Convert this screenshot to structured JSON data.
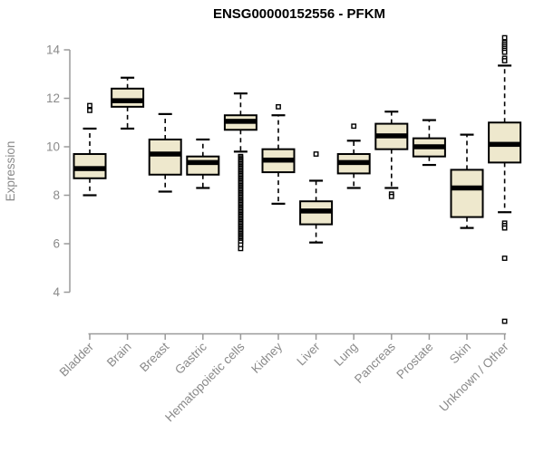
{
  "header": {
    "title": "ENSG00000152556 - PFKM"
  },
  "chart_data": {
    "type": "boxplot",
    "title": "ENSG00000152556 - PFKM",
    "xlabel": "",
    "ylabel": "Expression",
    "grid": false,
    "legend": false,
    "y_axis": {
      "min": 4,
      "max": 14,
      "ticks": [
        4,
        6,
        8,
        10,
        12,
        14
      ]
    },
    "categories": [
      "Bladder",
      "Brain",
      "Breast",
      "Gastric",
      "Hematopoietic cells",
      "Kidney",
      "Liver",
      "Lung",
      "Pancreas",
      "Prostate",
      "Skin",
      "Unknown / Other"
    ],
    "series": [
      {
        "name": "Bladder",
        "whisker_low": 8.0,
        "q1": 8.7,
        "median": 9.1,
        "q3": 9.7,
        "whisker_high": 10.75,
        "outliers": [
          11.5,
          11.7
        ]
      },
      {
        "name": "Brain",
        "whisker_low": 10.75,
        "q1": 11.65,
        "median": 11.9,
        "q3": 12.4,
        "whisker_high": 12.85,
        "outliers": []
      },
      {
        "name": "Breast",
        "whisker_low": 8.15,
        "q1": 8.85,
        "median": 9.7,
        "q3": 10.3,
        "whisker_high": 11.35,
        "outliers": []
      },
      {
        "name": "Gastric",
        "whisker_low": 8.3,
        "q1": 8.85,
        "median": 9.35,
        "q3": 9.6,
        "whisker_high": 10.3,
        "outliers": []
      },
      {
        "name": "Hematopoietic cells",
        "whisker_low": 9.8,
        "q1": 10.7,
        "median": 11.05,
        "q3": 11.3,
        "whisker_high": 12.2,
        "outliers": [
          9.6,
          9.54,
          9.48,
          9.42,
          9.36,
          9.3,
          9.24,
          9.18,
          9.12,
          9.06,
          9.0,
          8.94,
          8.88,
          8.82,
          8.76,
          8.7,
          8.64,
          8.58,
          8.52,
          8.46,
          8.4,
          8.34,
          8.28,
          8.22,
          8.16,
          8.1,
          8.04,
          7.98,
          7.92,
          7.86,
          7.8,
          7.74,
          7.68,
          7.62,
          7.56,
          7.5,
          7.44,
          7.38,
          7.32,
          7.26,
          7.2,
          7.14,
          7.08,
          7.02,
          6.96,
          6.9,
          6.84,
          6.78,
          6.72,
          6.66,
          6.6,
          6.54,
          6.48,
          6.42,
          6.36,
          6.3,
          6.24,
          6.18,
          6.12,
          6.06,
          5.95,
          5.8
        ]
      },
      {
        "name": "Kidney",
        "whisker_low": 7.65,
        "q1": 8.95,
        "median": 9.45,
        "q3": 9.9,
        "whisker_high": 11.3,
        "outliers": [
          11.65
        ]
      },
      {
        "name": "Liver",
        "whisker_low": 6.05,
        "q1": 6.8,
        "median": 7.35,
        "q3": 7.75,
        "whisker_high": 8.6,
        "outliers": [
          9.7
        ]
      },
      {
        "name": "Lung",
        "whisker_low": 8.3,
        "q1": 8.9,
        "median": 9.35,
        "q3": 9.7,
        "whisker_high": 10.25,
        "outliers": [
          10.85
        ]
      },
      {
        "name": "Pancreas",
        "whisker_low": 8.3,
        "q1": 9.9,
        "median": 10.45,
        "q3": 10.95,
        "whisker_high": 11.45,
        "outliers": [
          8.05,
          7.95
        ]
      },
      {
        "name": "Prostate",
        "whisker_low": 9.25,
        "q1": 9.6,
        "median": 10.0,
        "q3": 10.35,
        "whisker_high": 11.1,
        "outliers": []
      },
      {
        "name": "Skin",
        "whisker_low": 6.65,
        "q1": 7.1,
        "median": 8.3,
        "q3": 9.05,
        "whisker_high": 10.5,
        "outliers": []
      },
      {
        "name": "Unknown / Other",
        "whisker_low": 7.3,
        "q1": 9.35,
        "median": 10.1,
        "q3": 11.0,
        "whisker_high": 13.35,
        "outliers": [
          14.5,
          14.3,
          14.22,
          14.14,
          14.06,
          13.98,
          13.9,
          13.65,
          13.55,
          6.85,
          6.75,
          6.65,
          5.4,
          2.8
        ]
      }
    ],
    "style": {
      "box_fill": "#EEE8CD",
      "box_stroke": "#000000",
      "median_color": "#000000",
      "whisker_color": "#000000",
      "outlier_fill": "#FFFFFF",
      "outlier_stroke": "#000000",
      "axis_line_color": "#9A9A9A",
      "axis_text_color": "#8A8A8A",
      "title_color": "#000000",
      "background": "#FFFFFF"
    }
  }
}
